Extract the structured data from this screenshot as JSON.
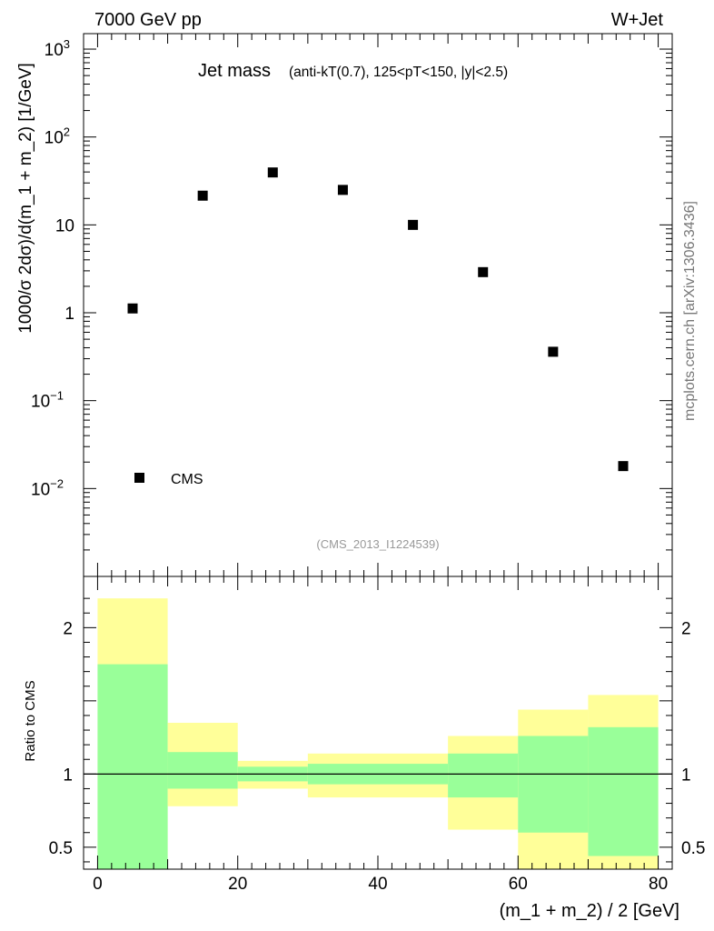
{
  "header": {
    "energy_label": "7000 GeV pp",
    "process_label": "W+Jet",
    "side_label": "mcplots.cern.ch [arXiv:1306.3436]",
    "analysis_id": "(CMS_2013_I1224539)"
  },
  "chart_data": [
    {
      "type": "scatter",
      "panel": "main",
      "title": "Jet mass",
      "subtitle": "(anti-kT(0.7), 125<pT<150, |y|<2.5)",
      "xlabel": "(m_1 + m_2) / 2 [GeV]",
      "ylabel": "1000/σ 2dσ)/d(m_1 + m_2) [1/GeV]",
      "yscale": "log",
      "ylim": [
        0.001,
        1500
      ],
      "xlim": [
        -2,
        82
      ],
      "legend": {
        "position": "bottom-left",
        "entries": [
          {
            "label": "CMS",
            "marker": "square"
          }
        ]
      },
      "y_ticks": [
        {
          "value": 1000,
          "label": "10",
          "exp": "3"
        },
        {
          "value": 100,
          "label": "10",
          "exp": "2"
        },
        {
          "value": 10,
          "label": "10",
          "exp": ""
        },
        {
          "value": 1,
          "label": "1",
          "exp": ""
        },
        {
          "value": 0.1,
          "label": "10",
          "exp": "−1"
        },
        {
          "value": 0.01,
          "label": "10",
          "exp": "−2"
        }
      ],
      "series": [
        {
          "name": "CMS",
          "x": [
            5,
            15,
            25,
            35,
            45,
            55,
            65,
            75
          ],
          "y": [
            1.12,
            21.5,
            39.5,
            25.0,
            10.0,
            2.9,
            0.36,
            0.018
          ]
        }
      ]
    },
    {
      "type": "area",
      "panel": "ratio",
      "ylabel": "Ratio to CMS",
      "xlabel": "(m_1 + m_2) / 2 [GeV]",
      "ylim": [
        0.35,
        2.35
      ],
      "xlim": [
        -2,
        82
      ],
      "reference_line": 1,
      "y_ticks": [
        {
          "value": 2,
          "label": "2"
        },
        {
          "value": 1,
          "label": "1"
        },
        {
          "value": 0.5,
          "label": "0.5"
        }
      ],
      "x_ticks": [
        {
          "value": 0,
          "label": "0"
        },
        {
          "value": 20,
          "label": "20"
        },
        {
          "value": 40,
          "label": "40"
        },
        {
          "value": 60,
          "label": "60"
        },
        {
          "value": 80,
          "label": "80"
        }
      ],
      "bins": [
        {
          "lo": 0,
          "hi": 10,
          "stat_lo": 0.35,
          "stat_hi": 1.75,
          "tot_lo": 0.35,
          "tot_hi": 2.2
        },
        {
          "lo": 10,
          "hi": 20,
          "stat_lo": 0.9,
          "stat_hi": 1.15,
          "tot_lo": 0.78,
          "tot_hi": 1.35
        },
        {
          "lo": 20,
          "hi": 30,
          "stat_lo": 0.95,
          "stat_hi": 1.05,
          "tot_lo": 0.9,
          "tot_hi": 1.09
        },
        {
          "lo": 30,
          "hi": 40,
          "stat_lo": 0.93,
          "stat_hi": 1.07,
          "tot_lo": 0.84,
          "tot_hi": 1.14
        },
        {
          "lo": 40,
          "hi": 50,
          "stat_lo": 0.93,
          "stat_hi": 1.07,
          "tot_lo": 0.84,
          "tot_hi": 1.14
        },
        {
          "lo": 50,
          "hi": 60,
          "stat_lo": 0.84,
          "stat_hi": 1.14,
          "tot_lo": 0.62,
          "tot_hi": 1.26
        },
        {
          "lo": 60,
          "hi": 70,
          "stat_lo": 0.6,
          "stat_hi": 1.26,
          "tot_lo": 0.35,
          "tot_hi": 1.44
        },
        {
          "lo": 70,
          "hi": 80,
          "stat_lo": 0.44,
          "stat_hi": 1.32,
          "tot_lo": 0.35,
          "tot_hi": 1.54
        }
      ],
      "colors": {
        "stat": "#99ff99",
        "total": "#ffff99"
      }
    }
  ]
}
